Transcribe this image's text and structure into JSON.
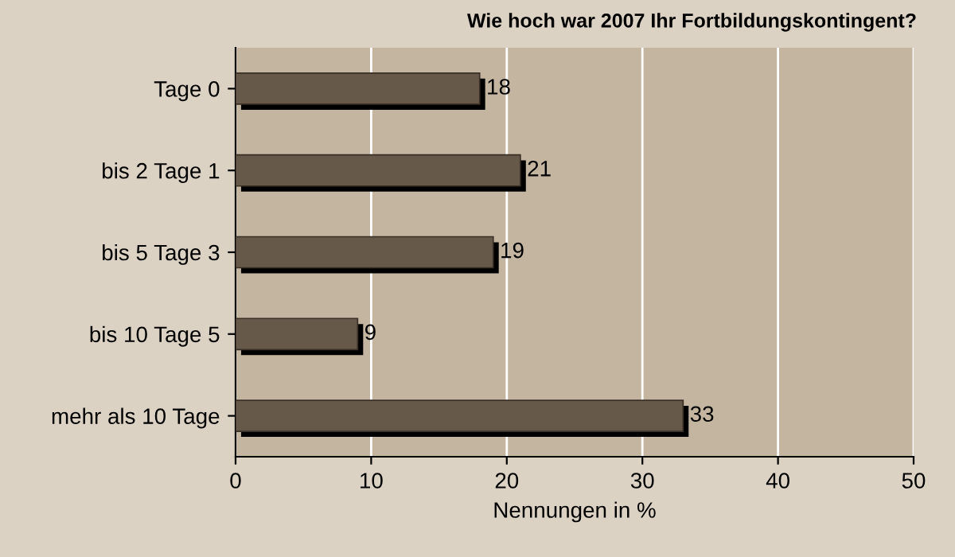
{
  "chart_data": {
    "type": "bar",
    "orientation": "horizontal",
    "title": "Wie hoch war 2007 Ihr Fortbildungskontingent?",
    "xlabel": "Nennungen in %",
    "categories": [
      "Tage 0",
      "bis 2 Tage 1",
      "bis 5 Tage 3",
      "bis 10 Tage 5",
      "mehr als 10 Tage"
    ],
    "values": [
      18,
      21,
      19,
      9,
      33
    ],
    "color": "#66594a",
    "xlim": [
      0,
      50
    ],
    "xticks": [
      0,
      10,
      20,
      30,
      40,
      50
    ],
    "grid": "x",
    "data_labels": true,
    "legend": false
  }
}
